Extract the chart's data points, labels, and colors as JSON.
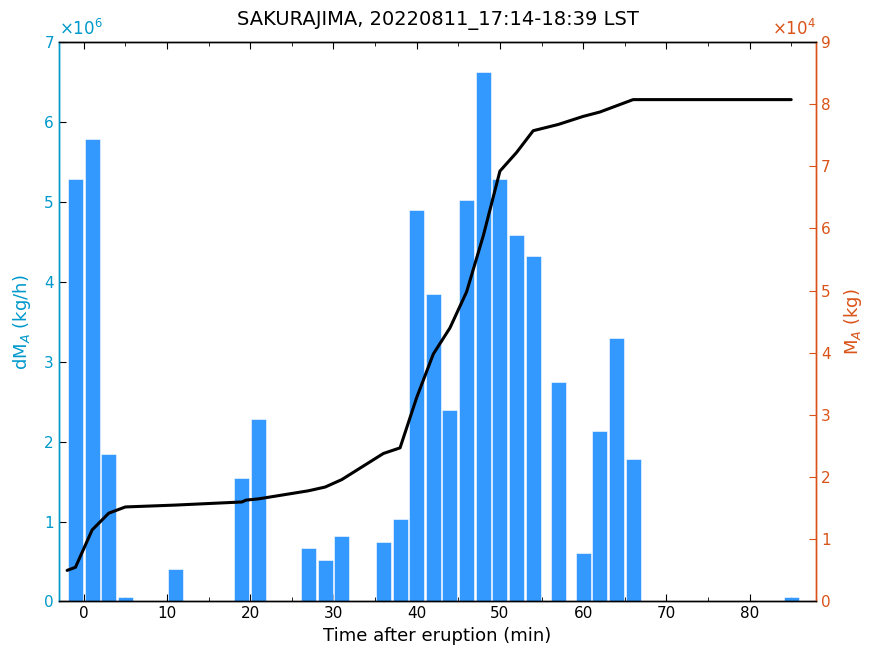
{
  "title": "SAKURAJIMA, 20220811_17:14-18:39 LST",
  "xlabel": "Time after eruption (min)",
  "bar_color": "#3399ff",
  "line_color": "#000000",
  "bar_positions": [
    -1,
    1,
    3,
    5,
    11,
    19,
    21,
    27,
    29,
    31,
    36,
    38,
    40,
    42,
    44,
    46,
    48,
    50,
    52,
    54,
    57,
    60,
    62,
    64,
    66,
    85
  ],
  "bar_heights": [
    5280000.0,
    5780000.0,
    1840000.0,
    50000.0,
    400000.0,
    1550000.0,
    2280000.0,
    670000.0,
    520000.0,
    820000.0,
    750000.0,
    1030000.0,
    4900000.0,
    3840000.0,
    2400000.0,
    5020000.0,
    6620000.0,
    5280000.0,
    4580000.0,
    4320000.0,
    2750000.0,
    600000.0,
    2130000.0,
    3300000.0,
    1780000.0,
    50000.0
  ],
  "bar_width": 1.8,
  "ylim_left": [
    0,
    7000000.0
  ],
  "ylim_right": [
    0,
    90000.0
  ],
  "xlim": [
    -3,
    88
  ],
  "xticks": [
    0,
    10,
    20,
    30,
    40,
    50,
    60,
    70,
    80
  ],
  "yticks_left": [
    0,
    1000000.0,
    2000000.0,
    3000000.0,
    4000000.0,
    5000000.0,
    6000000.0,
    7000000.0
  ],
  "yticks_right": [
    0,
    10000.0,
    20000.0,
    30000.0,
    40000.0,
    50000.0,
    60000.0,
    70000.0,
    80000.0,
    90000.0
  ],
  "cumulative_x": [
    -2,
    -1,
    1,
    3,
    5,
    11,
    19,
    19.5,
    21,
    27,
    29,
    31,
    36,
    38,
    40,
    42,
    44,
    46,
    48,
    50,
    52,
    54,
    57,
    60,
    62,
    64,
    66,
    85
  ],
  "cumulative_y": [
    5000.0,
    5500.0,
    11500.0,
    14200.0,
    15200.0,
    15500.0,
    16000.0,
    16300.0,
    16500.0,
    17800.0,
    18400.0,
    19600.0,
    23800.0,
    24700.0,
    32800.0,
    39800.0,
    44000.0,
    49800.0,
    58800.0,
    69200.0,
    72200.0,
    75700.0,
    76700.0,
    78000.0,
    78700.0,
    79700.0,
    80700.0,
    80700.0
  ],
  "left_axis_color": "#0099cc",
  "right_axis_color": "#d95319",
  "title_fontsize": 14,
  "label_fontsize": 13,
  "tick_fontsize": 11
}
